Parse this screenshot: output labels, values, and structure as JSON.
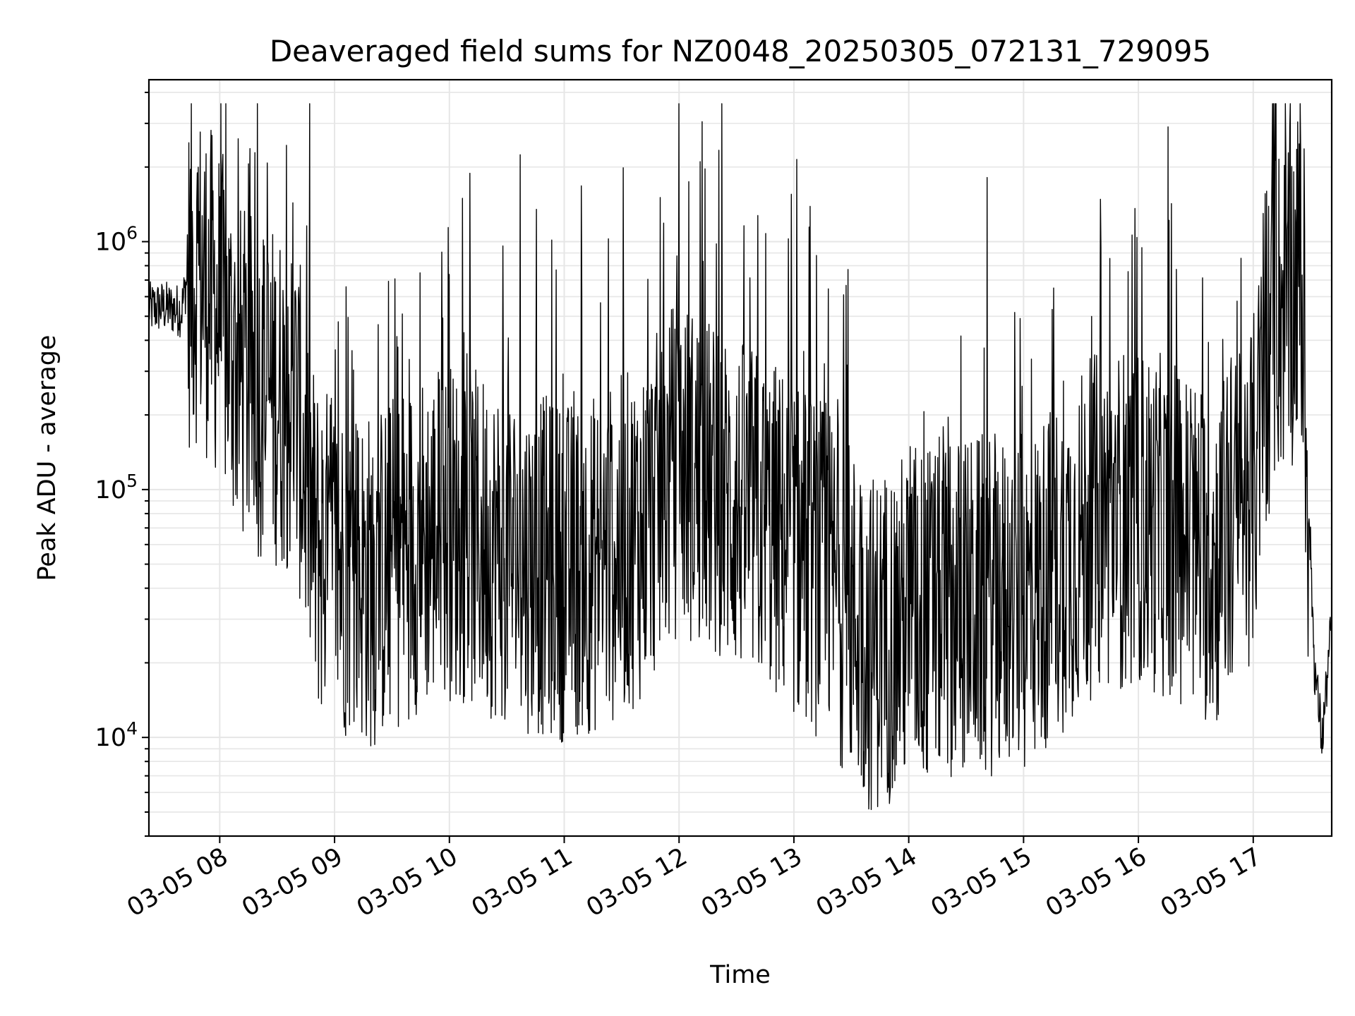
{
  "chart_data": {
    "type": "line",
    "title": "Deaveraged field sums for NZ0048_20250305_072131_729095",
    "xlabel": "Time",
    "ylabel": "Peak ADU - average",
    "yscale": "log",
    "grid": true,
    "line_color": "#000000",
    "x_range": [
      "2025-03-05 07:23",
      "2025-03-05 17:41"
    ],
    "ylim": [
      4000,
      4500000
    ],
    "x_ticks": [
      {
        "value": "2025-03-05 08:00",
        "label": "03-05 08"
      },
      {
        "value": "2025-03-05 09:00",
        "label": "03-05 09"
      },
      {
        "value": "2025-03-05 10:00",
        "label": "03-05 10"
      },
      {
        "value": "2025-03-05 11:00",
        "label": "03-05 11"
      },
      {
        "value": "2025-03-05 12:00",
        "label": "03-05 12"
      },
      {
        "value": "2025-03-05 13:00",
        "label": "03-05 13"
      },
      {
        "value": "2025-03-05 14:00",
        "label": "03-05 14"
      },
      {
        "value": "2025-03-05 15:00",
        "label": "03-05 15"
      },
      {
        "value": "2025-03-05 16:00",
        "label": "03-05 16"
      },
      {
        "value": "2025-03-05 17:00",
        "label": "03-05 17"
      }
    ],
    "y_ticks": [
      {
        "value": 10000,
        "base": "10",
        "exp": "4"
      },
      {
        "value": 100000,
        "base": "10",
        "exp": "5"
      },
      {
        "value": 1000000,
        "base": "10",
        "exp": "6"
      }
    ],
    "series": [
      {
        "x": [
          "2025-03-05 07:23",
          "2025-03-05 07:30",
          "2025-03-05 07:40",
          "2025-03-05 07:45",
          "2025-03-05 07:50",
          "2025-03-05 08:00",
          "2025-03-05 08:10",
          "2025-03-05 08:20",
          "2025-03-05 08:30",
          "2025-03-05 08:40",
          "2025-03-05 08:50",
          "2025-03-05 09:00",
          "2025-03-05 09:20",
          "2025-03-05 09:40",
          "2025-03-05 10:00",
          "2025-03-05 10:20",
          "2025-03-05 10:40",
          "2025-03-05 11:00",
          "2025-03-05 11:20",
          "2025-03-05 11:40",
          "2025-03-05 12:00",
          "2025-03-05 12:20",
          "2025-03-05 12:40",
          "2025-03-05 13:00",
          "2025-03-05 13:20",
          "2025-03-05 13:40",
          "2025-03-05 14:00",
          "2025-03-05 14:20",
          "2025-03-05 14:40",
          "2025-03-05 15:00",
          "2025-03-05 15:20",
          "2025-03-05 15:40",
          "2025-03-05 16:00",
          "2025-03-05 16:20",
          "2025-03-05 16:40",
          "2025-03-05 17:00",
          "2025-03-05 17:10",
          "2025-03-05 17:20",
          "2025-03-05 17:25",
          "2025-03-05 17:28",
          "2025-03-05 17:32",
          "2025-03-05 17:36",
          "2025-03-05 17:41"
        ],
        "values": [
          550000,
          560000,
          540000,
          900000,
          850000,
          600000,
          350000,
          300000,
          280000,
          250000,
          70000,
          60000,
          50000,
          70000,
          80000,
          70000,
          60000,
          55000,
          60000,
          80000,
          150000,
          110000,
          90000,
          70000,
          50000,
          28000,
          35000,
          40000,
          40000,
          40000,
          60000,
          90000,
          90000,
          80000,
          60000,
          120000,
          600000,
          700000,
          900000,
          150000,
          20000,
          10000,
          30000
        ]
      }
    ]
  }
}
